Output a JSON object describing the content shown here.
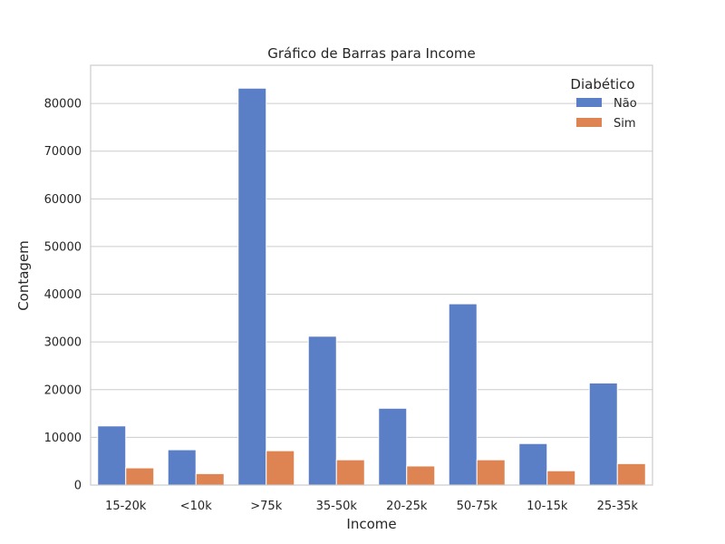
{
  "chart_data": {
    "type": "bar",
    "title": "Gráfico de Barras para Income",
    "xlabel": "Income",
    "ylabel": "Contagem",
    "categories": [
      "15-20k",
      "<10k",
      ">75k",
      "35-50k",
      "20-25k",
      "50-75k",
      "10-15k",
      "25-35k"
    ],
    "series": [
      {
        "name": "Não",
        "color": "#5b7fc7",
        "values": [
          12400,
          7400,
          83200,
          31200,
          16100,
          38000,
          8700,
          21400
        ]
      },
      {
        "name": "Sim",
        "color": "#dd8452",
        "values": [
          3600,
          2400,
          7200,
          5300,
          4000,
          5300,
          3000,
          4500
        ]
      }
    ],
    "ylim": [
      0,
      88000
    ],
    "yticks": [
      0,
      10000,
      20000,
      30000,
      40000,
      50000,
      60000,
      70000,
      80000
    ],
    "grid": true,
    "legend": {
      "title": "Diabético",
      "position": "top-right"
    }
  }
}
